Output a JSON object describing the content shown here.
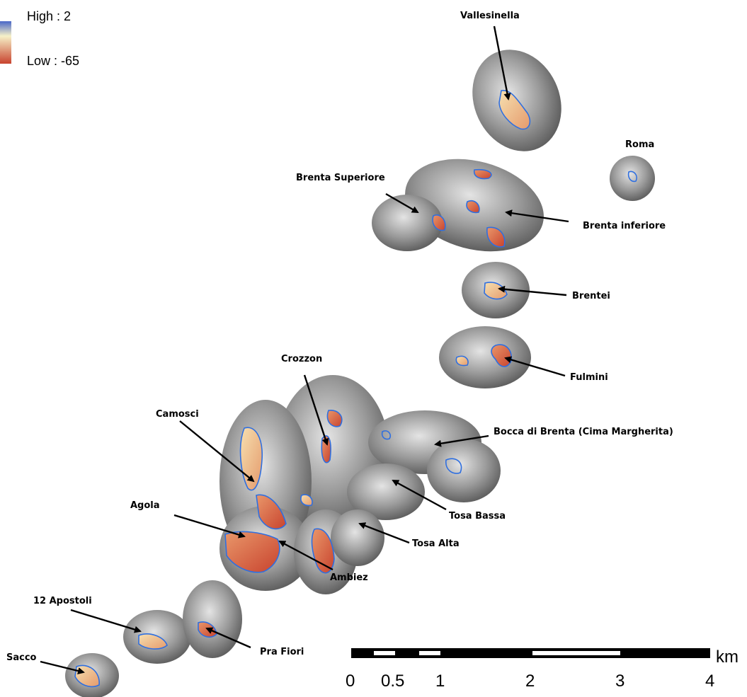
{
  "legend": {
    "high_label": "High : 2",
    "low_label": "Low : -65",
    "high_color": "#4a68c8",
    "mid_color": "#f6f1c8",
    "low_color": "#c8432e"
  },
  "glaciers": [
    {
      "name": "Vallesinella"
    },
    {
      "name": "Roma"
    },
    {
      "name": "Brenta Superiore"
    },
    {
      "name": "Brenta inferiore"
    },
    {
      "name": "Brentei"
    },
    {
      "name": "Fulmini"
    },
    {
      "name": "Crozzon"
    },
    {
      "name": "Camosci"
    },
    {
      "name": "Bocca di Brenta (Cima Margherita)"
    },
    {
      "name": "Agola"
    },
    {
      "name": "Tosa Bassa"
    },
    {
      "name": "Tosa Alta"
    },
    {
      "name": "Ambiez"
    },
    {
      "name": "12 Apostoli"
    },
    {
      "name": "Pra Fiori"
    },
    {
      "name": "Sacco"
    }
  ],
  "scale_bar": {
    "unit": "km",
    "ticks": [
      "0",
      "0.5",
      "1",
      "2",
      "3",
      "4"
    ]
  },
  "colors": {
    "outline_blue": "#2f6fe0",
    "hillshade_dark": "#5a5a5a",
    "hillshade_light": "#d8d8d8"
  }
}
